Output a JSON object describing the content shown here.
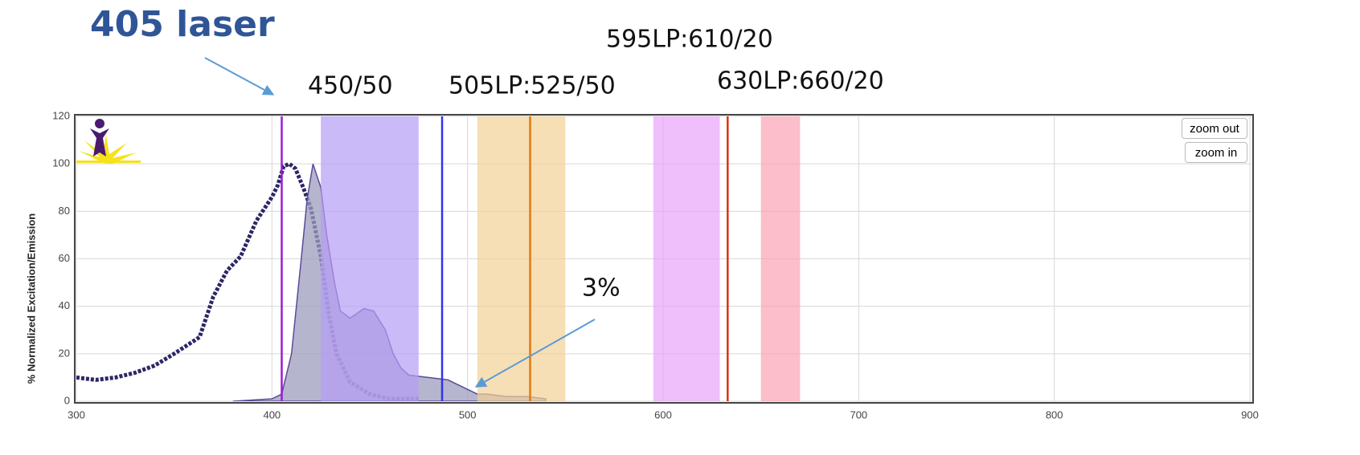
{
  "chart_data": {
    "type": "line",
    "ylabel": "% Normalized Excitation/Emission",
    "xlim": [
      300,
      900
    ],
    "xticks": [
      300,
      400,
      500,
      600,
      700,
      800,
      900
    ],
    "ylim": [
      0,
      120
    ],
    "yticks": [
      0,
      20,
      40,
      60,
      80,
      100,
      120
    ],
    "grid": true,
    "series": [
      {
        "color": "#2b2766",
        "style": "dotted",
        "x": [
          300,
          310,
          320,
          330,
          340,
          350,
          363,
          370,
          377,
          384,
          392,
          400,
          403,
          406,
          409,
          412,
          416,
          420,
          425,
          429,
          433,
          440,
          450,
          460,
          470,
          475
        ],
        "values": [
          10,
          9,
          10,
          12,
          15,
          20,
          27,
          44,
          55,
          61,
          76,
          86,
          91,
          99,
          100,
          98,
          90,
          81,
          61,
          37,
          20,
          8,
          3,
          1,
          1,
          1
        ]
      },
      {
        "color": "#9c9cbd",
        "style": "area",
        "x": [
          380,
          400,
          405,
          410,
          415,
          418,
          421,
          425,
          428,
          432,
          435,
          440,
          447,
          452,
          458,
          462,
          466,
          470,
          480,
          490,
          495,
          500,
          505,
          510,
          520,
          530,
          540
        ],
        "values": [
          0,
          1,
          3,
          20,
          60,
          85,
          100,
          90,
          70,
          50,
          38,
          35,
          39,
          38,
          30,
          20,
          14,
          11,
          10,
          9,
          7,
          5,
          3,
          3,
          2,
          2,
          1
        ]
      }
    ],
    "bands": [
      {
        "start": 425,
        "end": 475,
        "color": "#b59cf5"
      },
      {
        "start": 505,
        "end": 550,
        "color": "#f2d095"
      },
      {
        "start": 595,
        "end": 629,
        "color": "#e8a4fa"
      },
      {
        "start": 650,
        "end": 670,
        "color": "#f9a3b3"
      }
    ],
    "lasers": [
      {
        "value": 405,
        "color": "#9a1dd4"
      },
      {
        "value": 487,
        "color": "#3333ee"
      },
      {
        "value": 532,
        "color": "#e07a10"
      },
      {
        "value": 633,
        "color": "#e03010"
      }
    ],
    "annotations": [
      "405 laser",
      "450/50",
      "505LP:525/50",
      "595LP:610/20",
      "630LP:660/20",
      "3%"
    ]
  },
  "buttons": {
    "zoom_out": "zoom out",
    "zoom_in": "zoom in"
  }
}
